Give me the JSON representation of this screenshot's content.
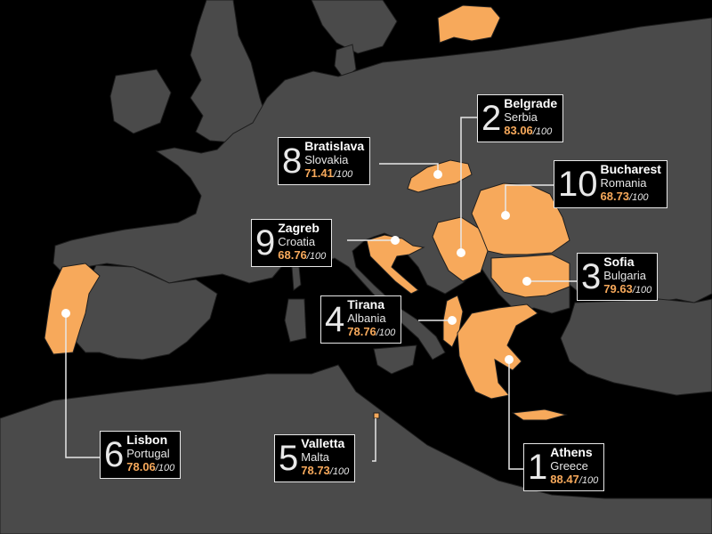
{
  "colors": {
    "sea": "#000000",
    "land": "#4a4a4a",
    "border": "#1e1e1e",
    "highlight": "#f7a95b",
    "label": "#e8e8e8"
  },
  "cities": [
    {
      "rank": "1",
      "city": "Athens",
      "country": "Greece",
      "score": "88.47",
      "outof": "/100"
    },
    {
      "rank": "2",
      "city": "Belgrade",
      "country": "Serbia",
      "score": "83.06",
      "outof": "/100"
    },
    {
      "rank": "3",
      "city": "Sofia",
      "country": "Bulgaria",
      "score": "79.63",
      "outof": "/100"
    },
    {
      "rank": "4",
      "city": "Tirana",
      "country": "Albania",
      "score": "78.76",
      "outof": "/100"
    },
    {
      "rank": "5",
      "city": "Valletta",
      "country": "Malta",
      "score": "78.73",
      "outof": "/100"
    },
    {
      "rank": "6",
      "city": "Lisbon",
      "country": "Portugal",
      "score": "78.06",
      "outof": "/100"
    },
    {
      "rank": "8",
      "city": "Bratislava",
      "country": "Slovakia",
      "score": "71.41",
      "outof": "/100"
    },
    {
      "rank": "9",
      "city": "Zagreb",
      "country": "Croatia",
      "score": "68.76",
      "outof": "/100"
    },
    {
      "rank": "10",
      "city": "Bucharest",
      "country": "Romania",
      "score": "68.73",
      "outof": "/100"
    }
  ]
}
